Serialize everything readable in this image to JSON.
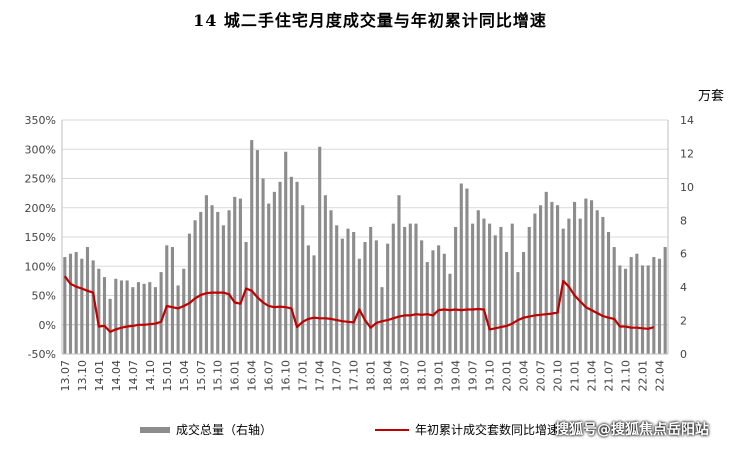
{
  "chart_data": {
    "type": "bar+line",
    "title": "14 城二手住宅月度成交量与年初累计同比增速",
    "right_axis_unit": "万套",
    "left_axis": {
      "ylim": [
        -50,
        350
      ],
      "ticks": [
        "350%",
        "300%",
        "250%",
        "200%",
        "150%",
        "100%",
        "50%",
        "0%",
        "-50%"
      ]
    },
    "right_axis": {
      "ylim": [
        0,
        14
      ],
      "ticks": [
        "14",
        "12",
        "10",
        "8",
        "6",
        "4",
        "2",
        "0"
      ]
    },
    "x_tick_labels": [
      "13.07",
      "13.10",
      "14.01",
      "14.04",
      "14.07",
      "14.10",
      "15.01",
      "15.04",
      "15.07",
      "15.10",
      "16.01",
      "16.04",
      "16.07",
      "16.10",
      "17.01",
      "17.04",
      "17.07",
      "17.10",
      "18.01",
      "18.04",
      "18.07",
      "18.10",
      "19.01",
      "19.04",
      "19.07",
      "19.10",
      "20.01",
      "20.04",
      "20.07",
      "20.10",
      "21.01",
      "21.04",
      "21.07",
      "21.10",
      "22.01",
      "22.04"
    ],
    "grid": true,
    "legend": {
      "position": "bottom",
      "bar_label": "成交总量（右轴）",
      "line_label": "年初累计成交套数同比增速"
    },
    "watermark": "搜狐号@搜狐焦点岳阳站",
    "series": [
      {
        "name": "成交总量（右轴）",
        "type": "bar",
        "axis": "right",
        "color": "#8c8c8c",
        "values": [
          5.8,
          6.0,
          6.1,
          5.7,
          6.4,
          5.6,
          5.1,
          4.6,
          3.3,
          4.5,
          4.4,
          4.4,
          4.0,
          4.3,
          4.2,
          4.3,
          4.0,
          4.9,
          6.5,
          6.4,
          4.1,
          5.1,
          7.2,
          8.0,
          8.5,
          9.5,
          8.9,
          8.5,
          7.7,
          8.6,
          9.4,
          9.3,
          6.7,
          12.8,
          12.2,
          10.5,
          9.0,
          9.7,
          10.3,
          12.1,
          10.6,
          10.3,
          8.9,
          6.5,
          5.9,
          12.4,
          9.5,
          8.6,
          7.7,
          6.9,
          7.5,
          7.3,
          5.7,
          6.7,
          7.6,
          6.8,
          4.0,
          6.6,
          7.8,
          9.5,
          7.6,
          7.8,
          7.8,
          6.8,
          5.5,
          6.2,
          6.5,
          6.0,
          4.8,
          7.6,
          10.2,
          9.9,
          7.8,
          8.6,
          8.1,
          7.8,
          7.1,
          7.6,
          6.1,
          7.8,
          4.9,
          6.1,
          7.6,
          8.4,
          8.9,
          9.7,
          9.1,
          8.9,
          7.5,
          8.1,
          9.1,
          8.1,
          9.3,
          9.2,
          8.6,
          8.2,
          7.3,
          6.4,
          5.3,
          5.1,
          5.8,
          6.0,
          5.3,
          5.3,
          5.8,
          5.7,
          6.4
        ]
      },
      {
        "name": "年初累计成交套数同比增速",
        "type": "line",
        "axis": "left",
        "color": "#c00000",
        "values": [
          83,
          70,
          65,
          62,
          58,
          55,
          -3,
          -2,
          -12,
          -8,
          -5,
          -3,
          -2,
          0,
          0,
          1,
          2,
          5,
          32,
          30,
          28,
          32,
          37,
          45,
          51,
          54,
          55,
          55,
          55,
          52,
          38,
          36,
          62,
          58,
          47,
          38,
          32,
          30,
          31,
          30,
          28,
          -4,
          5,
          10,
          12,
          11,
          11,
          10,
          8,
          6,
          5,
          4,
          26,
          8,
          -5,
          3,
          6,
          8,
          11,
          14,
          16,
          16,
          18,
          17,
          18,
          16,
          25,
          26,
          25,
          26,
          25,
          26,
          26,
          27,
          26,
          -8,
          -6,
          -4,
          -2,
          2,
          8,
          12,
          14,
          16,
          17,
          18,
          19,
          21,
          75,
          65,
          50,
          40,
          30,
          25,
          20,
          15,
          12,
          10,
          -3,
          -3,
          -5,
          -5,
          -6,
          -7,
          -4
        ]
      }
    ]
  }
}
